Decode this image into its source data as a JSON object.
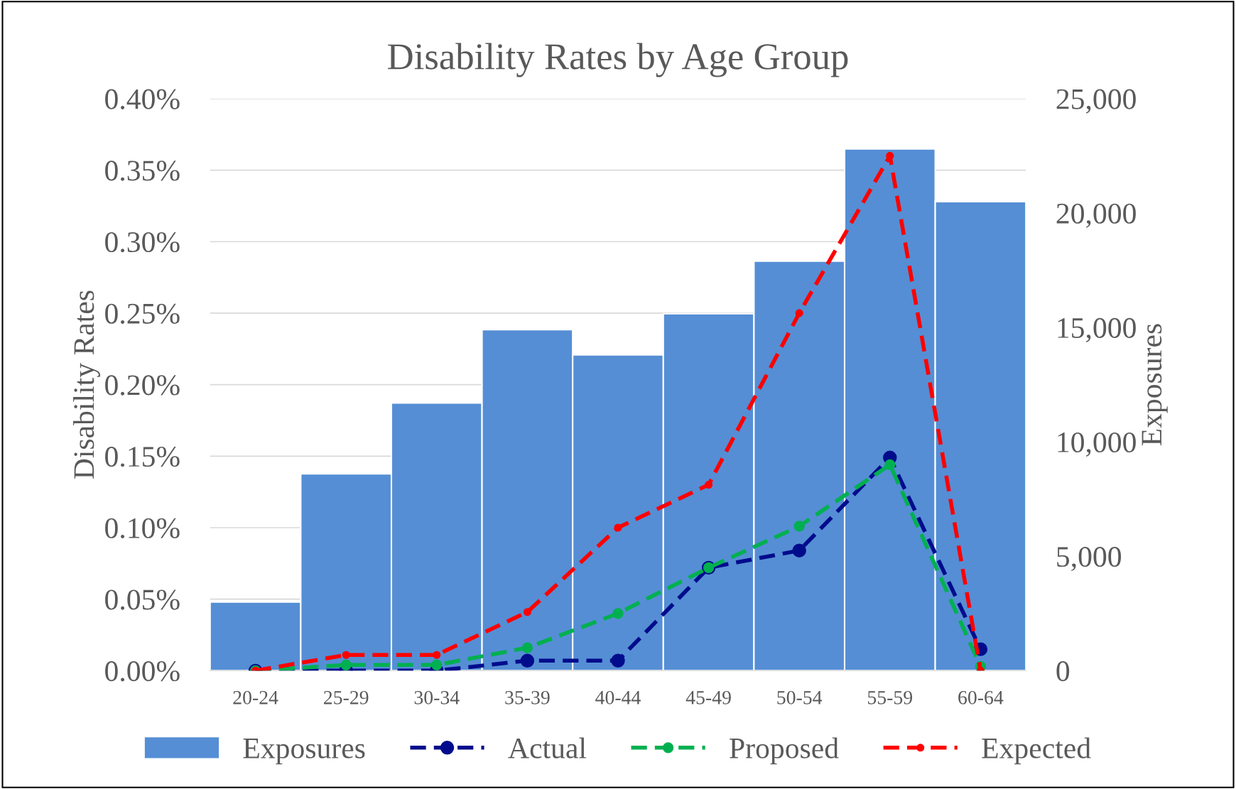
{
  "chart_data": {
    "type": "bar",
    "title": "Disability Rates by Age Group",
    "ylabel": "Disability Rates",
    "y2label": "Exposures",
    "categories": [
      "20-24",
      "25-29",
      "30-34",
      "35-39",
      "40-44",
      "45-49",
      "50-54",
      "55-59",
      "60-64"
    ],
    "series": [
      {
        "name": "Exposures",
        "axis": "y2",
        "color": "#558ed5",
        "values": [
          3000,
          8600,
          11700,
          14900,
          13800,
          15600,
          17900,
          22800,
          20500
        ]
      },
      {
        "name": "Actual",
        "type": "line",
        "color": "#000c8c",
        "line_style": "dashed",
        "marker": "circle",
        "values": [
          0,
          0,
          0,
          0.007,
          0.007,
          0.072,
          0.084,
          0.149,
          0.015
        ]
      },
      {
        "name": "Proposed",
        "type": "line",
        "color": "#00b050",
        "line_style": "dashed",
        "marker": "circle",
        "values": [
          0,
          0.004,
          0.004,
          0.016,
          0.04,
          0.072,
          0.101,
          0.144,
          0.003
        ]
      },
      {
        "name": "Expected",
        "type": "line",
        "color": "#ff0000",
        "line_style": "dashed",
        "marker": "circle",
        "values": [
          0,
          0.011,
          0.011,
          0.041,
          0.1,
          0.13,
          0.25,
          0.36,
          0
        ]
      }
    ],
    "ylim": [
      0,
      0.4
    ],
    "yticks": [
      {
        "value": 0,
        "label": "0.00%"
      },
      {
        "value": 0.05,
        "label": "0.05%"
      },
      {
        "value": 0.1,
        "label": "0.10%"
      },
      {
        "value": 0.15,
        "label": "0.15%"
      },
      {
        "value": 0.2,
        "label": "0.20%"
      },
      {
        "value": 0.25,
        "label": "0.25%"
      },
      {
        "value": 0.3,
        "label": "0.30%"
      },
      {
        "value": 0.35,
        "label": "0.35%"
      },
      {
        "value": 0.4,
        "label": "0.40%"
      }
    ],
    "y2lim": [
      0,
      25000
    ],
    "y2ticks": [
      {
        "value": 0,
        "label": "0"
      },
      {
        "value": 5000,
        "label": "5,000"
      },
      {
        "value": 10000,
        "label": "10,000"
      },
      {
        "value": 15000,
        "label": "15,000"
      },
      {
        "value": 20000,
        "label": "20,000"
      },
      {
        "value": 25000,
        "label": "25,000"
      }
    ],
    "grid": "y",
    "legend": "bottom"
  }
}
